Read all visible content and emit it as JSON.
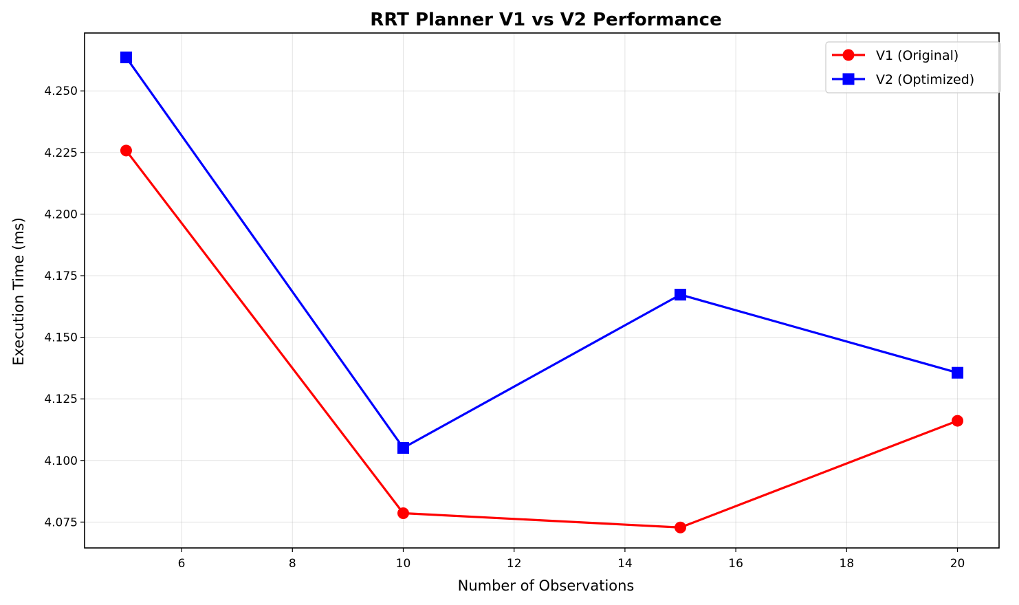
{
  "chart_data": {
    "type": "line",
    "title": "RRT Planner V1 vs V2 Performance",
    "xlabel": "Number of Observations",
    "ylabel": "Execution Time (ms)",
    "xlim": [
      4.25,
      20.75
    ],
    "ylim": [
      4.0645,
      4.2735
    ],
    "xticks": [
      6,
      8,
      10,
      12,
      14,
      16,
      18,
      20
    ],
    "xtick_labels": [
      "6",
      "8",
      "10",
      "12",
      "14",
      "16",
      "18",
      "20"
    ],
    "yticks": [
      4.075,
      4.1,
      4.125,
      4.15,
      4.175,
      4.2,
      4.225,
      4.25
    ],
    "ytick_labels": [
      "4.075",
      "4.100",
      "4.125",
      "4.150",
      "4.175",
      "4.200",
      "4.225",
      "4.250"
    ],
    "grid": true,
    "legend_position": "top-right",
    "x": [
      5,
      10,
      15,
      20
    ],
    "series": [
      {
        "name": "V1 (Original)",
        "values": [
          4.2258,
          4.0786,
          4.0728,
          4.1161
        ],
        "color": "#ff0000",
        "marker": "circle"
      },
      {
        "name": "V2 (Optimized)",
        "values": [
          4.2636,
          4.1051,
          4.1673,
          4.1356
        ],
        "color": "#0000ff",
        "marker": "square"
      }
    ]
  }
}
